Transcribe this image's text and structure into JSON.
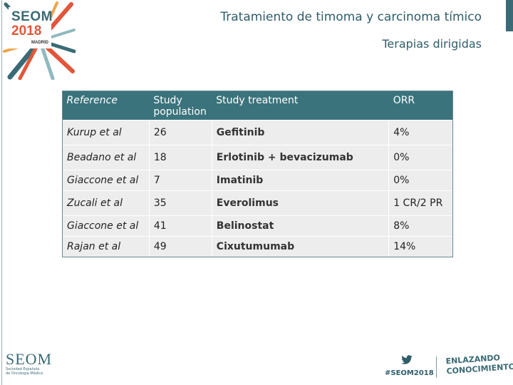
{
  "logo": {
    "line1": "SEOM",
    "line2": "2018",
    "city": "MADRID"
  },
  "header": {
    "title": "Tratamiento de timoma y carcinoma tímico",
    "subtitle": "Terapias dirigidas"
  },
  "table": {
    "columns": [
      "Reference",
      "Study population",
      "Study treatment",
      "ORR"
    ],
    "rows": [
      {
        "reference": "Kurup et al",
        "population": "26",
        "treatment": "Gefitinib",
        "orr": "4%"
      },
      {
        "reference": "Beadano et al",
        "population": "18",
        "treatment": "Erlotinib + bevacizumab",
        "orr": "0%"
      },
      {
        "reference": "Giaccone et al",
        "population": "7",
        "treatment": "Imatinib",
        "orr": "0%"
      },
      {
        "reference": "Zucali et al",
        "population": "35",
        "treatment": "Everolimus",
        "orr": "1 CR/2 PR"
      },
      {
        "reference": "Giaccone et al",
        "population": "41",
        "treatment": "Belinostat",
        "orr": "8%"
      },
      {
        "reference": "Rajan et al",
        "population": "49",
        "treatment": "Cixutumumab",
        "orr": "14%"
      }
    ]
  },
  "footer": {
    "seom_name": "SEOM",
    "seom_line1": "Sociedad Española",
    "seom_line2": "de Oncología Médica",
    "hashtag": "#SEOM2018",
    "slogan_line1": "ENLAZANDO",
    "slogan_line2": "CONOCIMIENTO",
    "twitter_icon": "twitter-bird-icon"
  },
  "colors": {
    "header_bg": "#3b737c",
    "row_bg": "#ededed",
    "title": "#2f5d6a",
    "accent": "#e2563a"
  }
}
